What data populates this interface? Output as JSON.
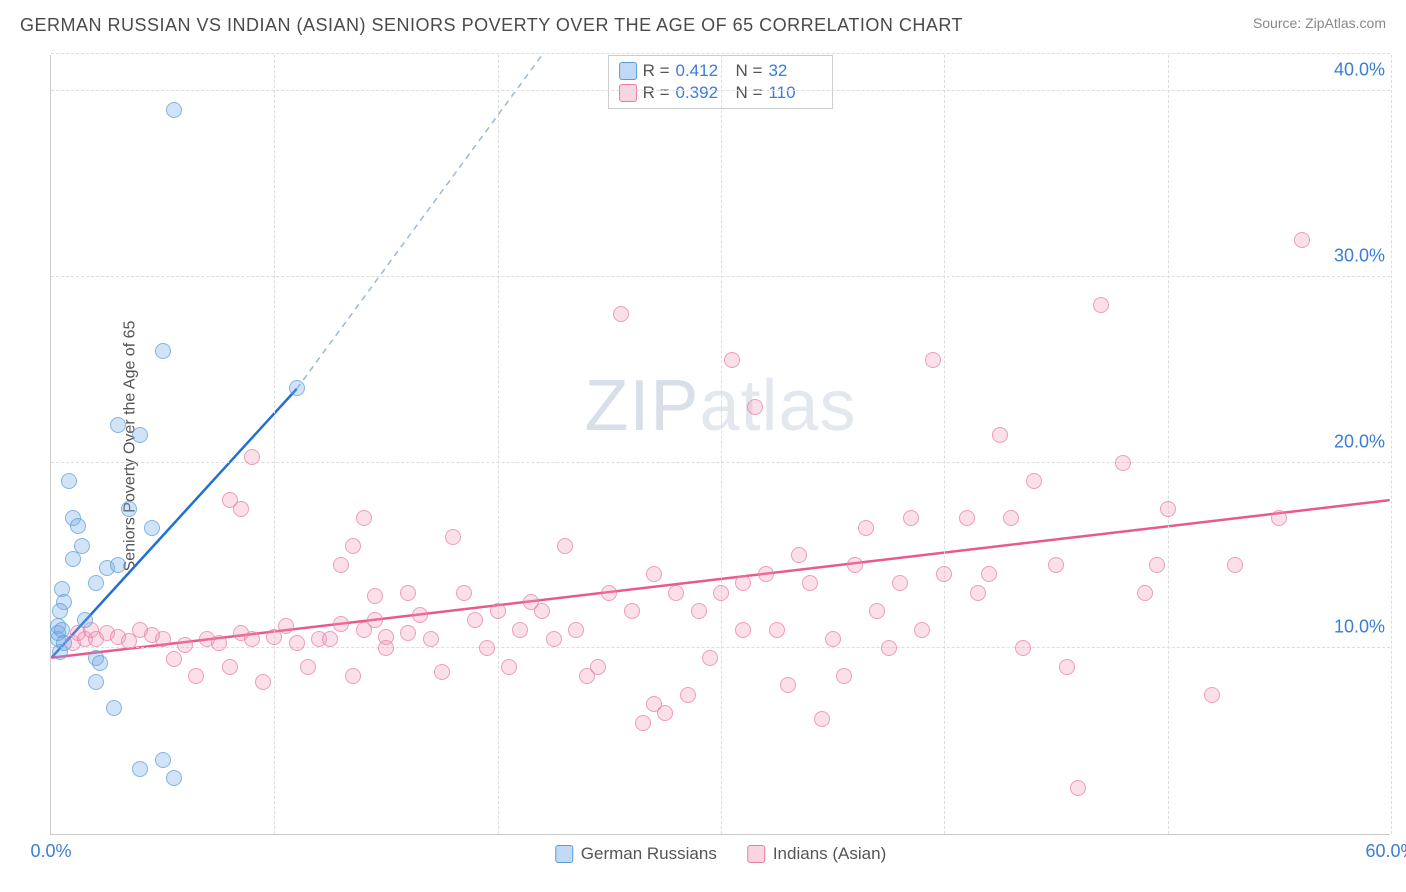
{
  "header": {
    "title": "GERMAN RUSSIAN VS INDIAN (ASIAN) SENIORS POVERTY OVER THE AGE OF 65 CORRELATION CHART",
    "source": "Source: ZipAtlas.com"
  },
  "watermark": {
    "prefix": "ZIP",
    "suffix": "atlas"
  },
  "axes": {
    "ylabel": "Seniors Poverty Over the Age of 65",
    "xmin": 0,
    "xmax": 60,
    "ymin": 0,
    "ymax": 42,
    "xticks": [
      {
        "v": 0,
        "l": "0.0%"
      },
      {
        "v": 60,
        "l": "60.0%"
      }
    ],
    "yticks": [
      {
        "v": 10,
        "l": "10.0%"
      },
      {
        "v": 20,
        "l": "20.0%"
      },
      {
        "v": 30,
        "l": "30.0%"
      },
      {
        "v": 40,
        "l": "40.0%"
      }
    ],
    "xgrids": [
      10,
      20,
      30,
      40,
      50,
      60
    ],
    "ygrids": [
      10,
      20,
      30,
      40,
      42
    ]
  },
  "legend_top": {
    "rows": [
      {
        "swatch": "sw-blue",
        "r_label": "R =",
        "r": "0.412",
        "n_label": "N =",
        "n": "32"
      },
      {
        "swatch": "sw-pink",
        "r_label": "R =",
        "r": "0.392",
        "n_label": "N =",
        "n": "110"
      }
    ]
  },
  "legend_bottom": {
    "items": [
      {
        "swatch": "sw-blue",
        "label": "German Russians"
      },
      {
        "swatch": "sw-pink",
        "label": "Indians (Asian)"
      }
    ]
  },
  "series": {
    "blue": {
      "color_fill": "rgba(120,170,230,0.45)",
      "color_stroke": "#5a9bd8",
      "trend": {
        "x1": 0,
        "y1": 9.5,
        "x2": 11,
        "y2": 24,
        "stroke": "#1f6fd6",
        "width": 2.5,
        "dash": "",
        "ext_x2": 22,
        "ext_y2": 42,
        "ext_dash": "6 5",
        "ext_stroke": "#9bb8d8"
      },
      "points": [
        [
          0.3,
          10.5
        ],
        [
          0.3,
          11.2
        ],
        [
          0.3,
          10.8
        ],
        [
          0.5,
          11
        ],
        [
          0.4,
          9.8
        ],
        [
          0.5,
          13.2
        ],
        [
          0.6,
          12.5
        ],
        [
          0.6,
          10.3
        ],
        [
          1,
          14.8
        ],
        [
          1,
          17
        ],
        [
          1.2,
          16.6
        ],
        [
          1.4,
          15.5
        ],
        [
          2,
          13.5
        ],
        [
          2,
          9.5
        ],
        [
          2.2,
          9.2
        ],
        [
          2,
          8.2
        ],
        [
          2.5,
          14.3
        ],
        [
          3,
          14.5
        ],
        [
          3,
          22
        ],
        [
          3.5,
          17.5
        ],
        [
          4,
          21.5
        ],
        [
          4.5,
          16.5
        ],
        [
          5,
          26
        ],
        [
          5.5,
          39
        ],
        [
          2.8,
          6.8
        ],
        [
          4,
          3.5
        ],
        [
          5,
          4
        ],
        [
          5.5,
          3
        ],
        [
          11,
          24
        ],
        [
          0.8,
          19
        ],
        [
          0.4,
          12
        ],
        [
          1.5,
          11.5
        ]
      ]
    },
    "pink": {
      "color_fill": "rgba(240,150,180,0.4)",
      "color_stroke": "#e87ca5",
      "trend": {
        "x1": 0,
        "y1": 9.5,
        "x2": 60,
        "y2": 18,
        "stroke": "#e85a8f",
        "width": 2.5,
        "dash": ""
      },
      "points": [
        [
          1,
          10.3
        ],
        [
          1.2,
          10.8
        ],
        [
          1.5,
          10.5
        ],
        [
          1.8,
          11
        ],
        [
          2,
          10.5
        ],
        [
          2.5,
          10.8
        ],
        [
          3,
          10.6
        ],
        [
          3.5,
          10.4
        ],
        [
          4,
          11
        ],
        [
          4.5,
          10.7
        ],
        [
          5,
          10.5
        ],
        [
          5.5,
          9.4
        ],
        [
          6,
          10.2
        ],
        [
          6.5,
          8.5
        ],
        [
          7,
          10.5
        ],
        [
          7.5,
          10.3
        ],
        [
          8,
          9
        ],
        [
          8.5,
          10.8
        ],
        [
          9,
          10.5
        ],
        [
          9.5,
          8.2
        ],
        [
          10,
          10.6
        ],
        [
          10.5,
          11.2
        ],
        [
          11,
          10.3
        ],
        [
          11.5,
          9
        ],
        [
          12,
          10.5
        ],
        [
          12.5,
          10.5
        ],
        [
          13,
          11.3
        ],
        [
          13.5,
          8.5
        ],
        [
          14,
          11
        ],
        [
          14.5,
          12.8
        ],
        [
          15,
          10.6
        ],
        [
          16,
          10.8
        ],
        [
          8,
          18
        ],
        [
          8.5,
          17.5
        ],
        [
          9,
          20.3
        ],
        [
          13,
          14.5
        ],
        [
          13.5,
          15.5
        ],
        [
          14,
          17
        ],
        [
          14.5,
          11.5
        ],
        [
          15,
          10
        ],
        [
          16,
          13
        ],
        [
          16.5,
          11.8
        ],
        [
          17,
          10.5
        ],
        [
          17.5,
          8.7
        ],
        [
          18,
          16
        ],
        [
          18.5,
          13
        ],
        [
          19,
          11.5
        ],
        [
          19.5,
          10
        ],
        [
          20,
          12
        ],
        [
          20.5,
          9
        ],
        [
          21,
          11
        ],
        [
          21.5,
          12.5
        ],
        [
          22,
          12
        ],
        [
          22.5,
          10.5
        ],
        [
          23,
          15.5
        ],
        [
          23.5,
          11
        ],
        [
          24,
          8.5
        ],
        [
          24.5,
          9
        ],
        [
          25,
          13
        ],
        [
          25.5,
          28
        ],
        [
          26,
          12
        ],
        [
          26.5,
          6
        ],
        [
          27,
          7
        ],
        [
          27.5,
          6.5
        ],
        [
          28,
          13
        ],
        [
          28.5,
          7.5
        ],
        [
          29,
          12
        ],
        [
          29.5,
          9.5
        ],
        [
          30,
          13
        ],
        [
          30.5,
          25.5
        ],
        [
          31,
          11
        ],
        [
          31.5,
          23
        ],
        [
          32,
          14
        ],
        [
          32.5,
          11
        ],
        [
          33,
          8
        ],
        [
          33.5,
          15
        ],
        [
          34,
          13.5
        ],
        [
          35,
          10.5
        ],
        [
          35.5,
          8.5
        ],
        [
          36,
          14.5
        ],
        [
          36.5,
          16.5
        ],
        [
          37,
          12
        ],
        [
          37.5,
          10
        ],
        [
          38,
          13.5
        ],
        [
          38.5,
          17
        ],
        [
          39,
          11
        ],
        [
          39.5,
          25.5
        ],
        [
          40,
          14
        ],
        [
          41,
          17
        ],
        [
          41.5,
          13
        ],
        [
          42,
          14
        ],
        [
          42.5,
          21.5
        ],
        [
          43,
          17
        ],
        [
          43.5,
          10
        ],
        [
          44,
          19
        ],
        [
          45,
          14.5
        ],
        [
          45.5,
          9
        ],
        [
          46,
          2.5
        ],
        [
          47,
          28.5
        ],
        [
          48,
          20
        ],
        [
          49,
          13
        ],
        [
          49.5,
          14.5
        ],
        [
          50,
          17.5
        ],
        [
          52,
          7.5
        ],
        [
          53,
          14.5
        ],
        [
          55,
          17
        ],
        [
          56,
          32
        ],
        [
          27,
          14
        ],
        [
          31,
          13.5
        ],
        [
          34.5,
          6.2
        ]
      ]
    }
  }
}
